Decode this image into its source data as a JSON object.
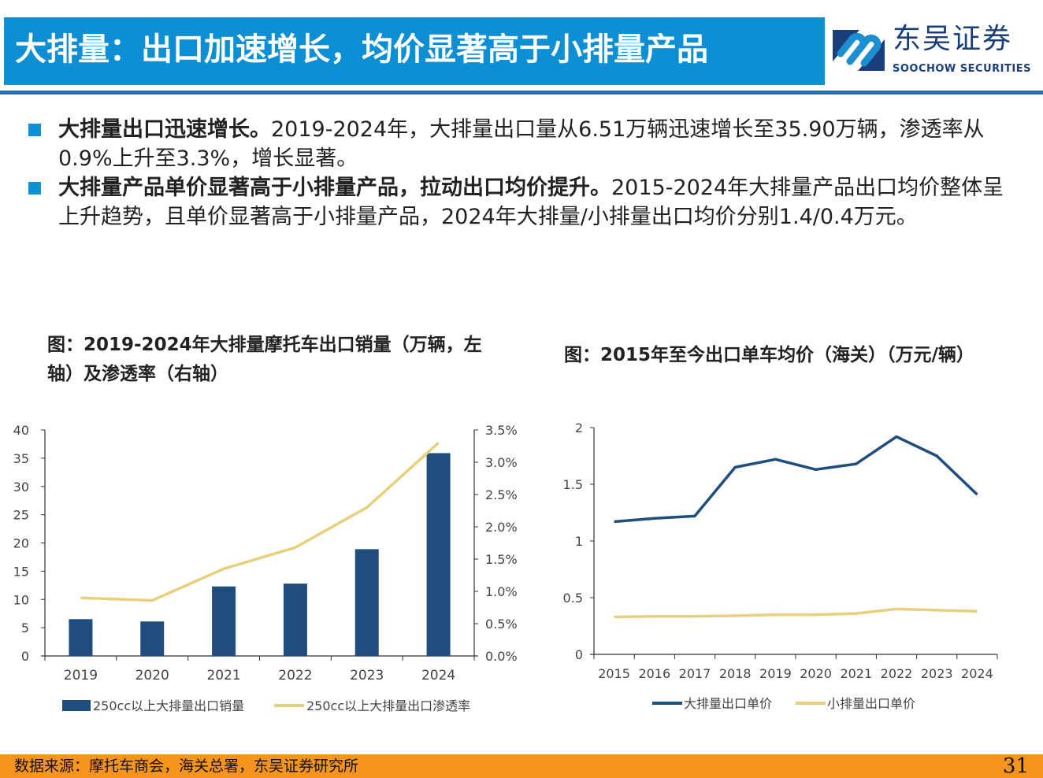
{
  "header": {
    "title": "大排量：出口加速增长，均价显著高于小排量产品",
    "logo_cn": "东吴证券",
    "logo_en": "SOOCHOW SECURITIES"
  },
  "bullets": [
    {
      "bold": "大排量出口迅速增长。",
      "text": "2019-2024年，大排量出口量从6.51万辆迅速增长至35.90万辆，渗透率从0.9%上升至3.3%，增长显著。"
    },
    {
      "bold": "大排量产品单价显著高于小排量产品，拉动出口均价提升。",
      "text": "2015-2024年大排量产品出口均价整体呈上升趋势，且单价显著高于小排量产品，2024年大排量/小排量出口均价分别1.4/0.4万元。"
    }
  ],
  "colors": {
    "navy": "#1f4e7e",
    "gold": "#e8cf7c",
    "title_blue": "#0e8fd3",
    "footer_orange": "#f7941d"
  },
  "chart_data": [
    {
      "type": "bar+line",
      "title": "图：2019-2024年大排量摩托车出口销量（万辆，左轴）及渗透率（右轴）",
      "categories": [
        "2019",
        "2020",
        "2021",
        "2022",
        "2023",
        "2024"
      ],
      "ylim": [
        0,
        40
      ],
      "yticks": [
        "0",
        "5",
        "10",
        "15",
        "20",
        "25",
        "30",
        "35",
        "40"
      ],
      "y2lim": [
        0,
        3.5
      ],
      "y2ticks": [
        "0.0%",
        "0.5%",
        "1.0%",
        "1.5%",
        "2.0%",
        "2.5%",
        "3.0%",
        "3.5%"
      ],
      "series": [
        {
          "name": "250cc以上大排量出口销量",
          "type": "bar",
          "axis": "left",
          "values": [
            6.51,
            6.1,
            12.3,
            12.8,
            18.9,
            35.9
          ]
        },
        {
          "name": "250cc以上大排量出口渗透率",
          "type": "line",
          "axis": "right",
          "values": [
            0.9,
            0.86,
            1.35,
            1.68,
            2.3,
            3.3
          ]
        }
      ],
      "legend": "bottom",
      "grid": false
    },
    {
      "type": "line",
      "title": "图：2015年至今出口单车均价（海关）（万元/辆）",
      "categories": [
        "2015",
        "2016",
        "2017",
        "2018",
        "2019",
        "2020",
        "2021",
        "2022",
        "2023",
        "2024"
      ],
      "ylim": [
        0,
        2
      ],
      "yticks": [
        "0",
        "0.5",
        "1",
        "1.5",
        "2"
      ],
      "series": [
        {
          "name": "大排量出口单价",
          "values": [
            1.17,
            1.2,
            1.22,
            1.65,
            1.72,
            1.63,
            1.68,
            1.92,
            1.75,
            1.41
          ]
        },
        {
          "name": "小排量出口单价",
          "values": [
            0.33,
            0.335,
            0.335,
            0.34,
            0.35,
            0.35,
            0.36,
            0.4,
            0.39,
            0.38
          ]
        }
      ],
      "legend": "bottom",
      "grid": false
    }
  ],
  "footer": {
    "source": "数据来源：摩托车商会，海关总署，东吴证券研究所",
    "page": "31"
  }
}
